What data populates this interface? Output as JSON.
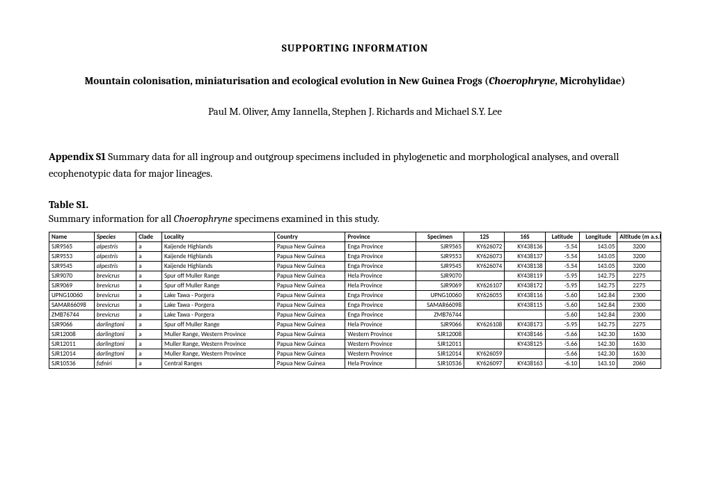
{
  "section_title": "SUPPORTING INFORMATION",
  "main_title_prefix": "Mountain colonisation, miniaturisation and ecological evolution in New Guinea Frogs (",
  "main_title_italic": "Choerophryne",
  "main_title_suffix": ", Microhylidae)",
  "authors": "Paul M. Oliver, Amy Iannella, Stephen J. Richards and Michael S.Y. Lee",
  "appendix_label": "Appendix S1",
  "appendix_text": " Summary data for all ingroup and outgroup specimens included in phylogenetic and morphological analyses, and overall ecophenotypic data for major lineages.",
  "table_label": "Table S1.",
  "table_caption_prefix": "Summary information for all ",
  "table_caption_italic": "Choerophryne",
  "table_caption_suffix": " specimens examined in this study.",
  "headers": {
    "name": "Name",
    "species": "Species",
    "clade": "Clade",
    "locality": "Locality",
    "country": "Country",
    "province": "Province",
    "specimen": "Specimen",
    "g12s": "12S",
    "g16s": "16S",
    "lat": "Latitude",
    "lon": "Longitude",
    "alt": "Altitude (m a.s.l)"
  },
  "rows": [
    {
      "name": "SJR9565",
      "species": "alpestris",
      "clade": "a",
      "locality": "Kaijende Highlands",
      "country": "Papua New Guinea",
      "province": "Enga Province",
      "specimen": "SJR9565",
      "g12s": "KY626072",
      "g16s": "KY438136",
      "lat": "-5.54",
      "lon": "143.05",
      "alt": "3200"
    },
    {
      "name": "SJR9553",
      "species": "alpestris",
      "clade": "a",
      "locality": "Kaijende Highlands",
      "country": "Papua New Guinea",
      "province": "Enga Province",
      "specimen": "SJR9553",
      "g12s": "KY626073",
      "g16s": "KY438137",
      "lat": "-5.54",
      "lon": "143.05",
      "alt": "3200"
    },
    {
      "name": "SJR9545",
      "species": "alpestris",
      "clade": "a",
      "locality": "Kaijende Highlands",
      "country": "Papua New Guinea",
      "province": "Enga Province",
      "specimen": "SJR9545",
      "g12s": "KY626074",
      "g16s": "KY438138",
      "lat": "-5.54",
      "lon": "143.05",
      "alt": "3200"
    },
    {
      "name": "SJR9070",
      "species": "brevicrus",
      "clade": "a",
      "locality": "Spur off Muller Range",
      "country": "Papua New Guinea",
      "province": "Hela Province",
      "specimen": "SJR9070",
      "g12s": "",
      "g16s": "KY438119",
      "lat": "-5.95",
      "lon": "142.75",
      "alt": "2275"
    },
    {
      "name": "SJR9069",
      "species": "brevicrus",
      "clade": "a",
      "locality": "Spur off Muller Range",
      "country": "Papua New Guinea",
      "province": "Hela Province",
      "specimen": "SJR9069",
      "g12s": "KY626107",
      "g16s": "KY438172",
      "lat": "-5.95",
      "lon": "142.75",
      "alt": "2275"
    },
    {
      "name": "UPNG10060",
      "species": "brevicrus",
      "clade": "a",
      "locality": "Lake Tawa - Porgera",
      "country": "Papua New Guinea",
      "province": "Enga Province",
      "specimen": "UPNG10060",
      "g12s": "KY626055",
      "g16s": "KY438116",
      "lat": "-5.60",
      "lon": "142.84",
      "alt": "2300"
    },
    {
      "name": "SAMAR66098",
      "species": "brevicrus",
      "clade": "a",
      "locality": "Lake Tawa - Porgera",
      "country": "Papua New Guinea",
      "province": "Enga Province",
      "specimen": "SAMAR66098",
      "g12s": "",
      "g16s": "KY438115",
      "lat": "-5.60",
      "lon": "142.84",
      "alt": "2300"
    },
    {
      "name": "ZMB76744",
      "species": "brevicrus",
      "clade": "a",
      "locality": "Lake Tawa - Porgera",
      "country": "Papua New Guinea",
      "province": "Enga Province",
      "specimen": "ZMB76744",
      "g12s": "",
      "g16s": "",
      "lat": "-5.60",
      "lon": "142.84",
      "alt": "2300"
    },
    {
      "name": "SJR9066",
      "species": "darlingtoni",
      "clade": "a",
      "locality": "Spur off Muller Range",
      "country": "Papua New Guinea",
      "province": "Hela Province",
      "specimen": "SJR9066",
      "g12s": "KY626108",
      "g16s": "KY438173",
      "lat": "-5.95",
      "lon": "142.75",
      "alt": "2275"
    },
    {
      "name": "SJR12008",
      "species": "darlingtoni",
      "clade": "a",
      "locality": "Muller Range, Western Province",
      "country": "Papua New Guinea",
      "province": "Western Province",
      "specimen": "SJR12008",
      "g12s": "",
      "g16s": "KY438146",
      "lat": "-5.66",
      "lon": "142.30",
      "alt": "1630"
    },
    {
      "name": "SJR12011",
      "species": "darlingtoni",
      "clade": "a",
      "locality": "Muller Range, Western Province",
      "country": "Papua New Guinea",
      "province": "Western Province",
      "specimen": "SJR12011",
      "g12s": "",
      "g16s": "KY438125",
      "lat": "-5.66",
      "lon": "142.30",
      "alt": "1630"
    },
    {
      "name": "SJR12014",
      "species": "darlingtoni",
      "clade": "a",
      "locality": "Muller Range, Western Province",
      "country": "Papua New Guinea",
      "province": "Western Province",
      "specimen": "SJR12014",
      "g12s": "KY626059",
      "g16s": "",
      "lat": "-5.66",
      "lon": "142.30",
      "alt": "1630"
    },
    {
      "name": "SJR10536",
      "species": "fafniri",
      "clade": "a",
      "locality": "Central Ranges",
      "country": "Papua New Guinea",
      "province": "Hela Province",
      "specimen": "SJR10536",
      "g12s": "KY626097",
      "g16s": "KY438163",
      "lat": "-6.10",
      "lon": "143.10",
      "alt": "2060"
    }
  ]
}
